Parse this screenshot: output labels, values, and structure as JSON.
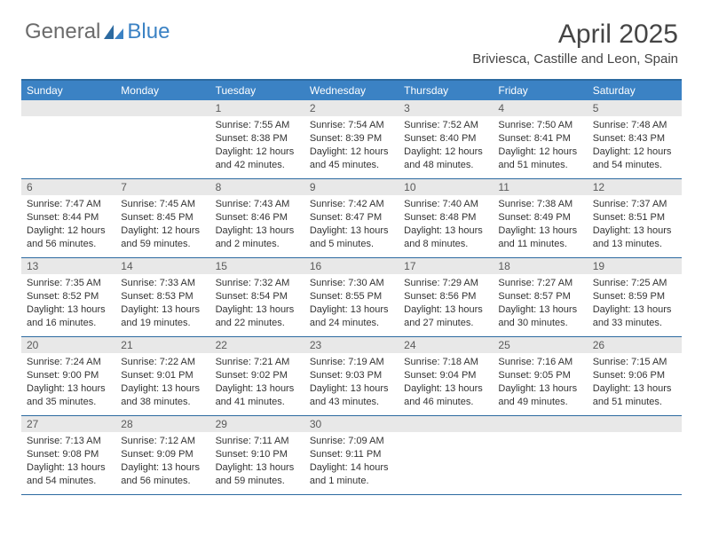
{
  "brand": {
    "general": "General",
    "blue": "Blue"
  },
  "title": "April 2025",
  "location": "Briviesca, Castille and Leon, Spain",
  "colors": {
    "header_bar": "#3b82c4",
    "rule": "#2c6aa0",
    "day_num_bg": "#e8e8e8",
    "text_dark": "#454545",
    "text_body": "#333333",
    "logo_gray": "#6b6b6b",
    "logo_blue": "#3b82c4",
    "background": "#ffffff"
  },
  "weekdays": [
    "Sunday",
    "Monday",
    "Tuesday",
    "Wednesday",
    "Thursday",
    "Friday",
    "Saturday"
  ],
  "weeks": [
    [
      {
        "n": "",
        "lines": []
      },
      {
        "n": "",
        "lines": []
      },
      {
        "n": "1",
        "lines": [
          "Sunrise: 7:55 AM",
          "Sunset: 8:38 PM",
          "Daylight: 12 hours",
          "and 42 minutes."
        ]
      },
      {
        "n": "2",
        "lines": [
          "Sunrise: 7:54 AM",
          "Sunset: 8:39 PM",
          "Daylight: 12 hours",
          "and 45 minutes."
        ]
      },
      {
        "n": "3",
        "lines": [
          "Sunrise: 7:52 AM",
          "Sunset: 8:40 PM",
          "Daylight: 12 hours",
          "and 48 minutes."
        ]
      },
      {
        "n": "4",
        "lines": [
          "Sunrise: 7:50 AM",
          "Sunset: 8:41 PM",
          "Daylight: 12 hours",
          "and 51 minutes."
        ]
      },
      {
        "n": "5",
        "lines": [
          "Sunrise: 7:48 AM",
          "Sunset: 8:43 PM",
          "Daylight: 12 hours",
          "and 54 minutes."
        ]
      }
    ],
    [
      {
        "n": "6",
        "lines": [
          "Sunrise: 7:47 AM",
          "Sunset: 8:44 PM",
          "Daylight: 12 hours",
          "and 56 minutes."
        ]
      },
      {
        "n": "7",
        "lines": [
          "Sunrise: 7:45 AM",
          "Sunset: 8:45 PM",
          "Daylight: 12 hours",
          "and 59 minutes."
        ]
      },
      {
        "n": "8",
        "lines": [
          "Sunrise: 7:43 AM",
          "Sunset: 8:46 PM",
          "Daylight: 13 hours",
          "and 2 minutes."
        ]
      },
      {
        "n": "9",
        "lines": [
          "Sunrise: 7:42 AM",
          "Sunset: 8:47 PM",
          "Daylight: 13 hours",
          "and 5 minutes."
        ]
      },
      {
        "n": "10",
        "lines": [
          "Sunrise: 7:40 AM",
          "Sunset: 8:48 PM",
          "Daylight: 13 hours",
          "and 8 minutes."
        ]
      },
      {
        "n": "11",
        "lines": [
          "Sunrise: 7:38 AM",
          "Sunset: 8:49 PM",
          "Daylight: 13 hours",
          "and 11 minutes."
        ]
      },
      {
        "n": "12",
        "lines": [
          "Sunrise: 7:37 AM",
          "Sunset: 8:51 PM",
          "Daylight: 13 hours",
          "and 13 minutes."
        ]
      }
    ],
    [
      {
        "n": "13",
        "lines": [
          "Sunrise: 7:35 AM",
          "Sunset: 8:52 PM",
          "Daylight: 13 hours",
          "and 16 minutes."
        ]
      },
      {
        "n": "14",
        "lines": [
          "Sunrise: 7:33 AM",
          "Sunset: 8:53 PM",
          "Daylight: 13 hours",
          "and 19 minutes."
        ]
      },
      {
        "n": "15",
        "lines": [
          "Sunrise: 7:32 AM",
          "Sunset: 8:54 PM",
          "Daylight: 13 hours",
          "and 22 minutes."
        ]
      },
      {
        "n": "16",
        "lines": [
          "Sunrise: 7:30 AM",
          "Sunset: 8:55 PM",
          "Daylight: 13 hours",
          "and 24 minutes."
        ]
      },
      {
        "n": "17",
        "lines": [
          "Sunrise: 7:29 AM",
          "Sunset: 8:56 PM",
          "Daylight: 13 hours",
          "and 27 minutes."
        ]
      },
      {
        "n": "18",
        "lines": [
          "Sunrise: 7:27 AM",
          "Sunset: 8:57 PM",
          "Daylight: 13 hours",
          "and 30 minutes."
        ]
      },
      {
        "n": "19",
        "lines": [
          "Sunrise: 7:25 AM",
          "Sunset: 8:59 PM",
          "Daylight: 13 hours",
          "and 33 minutes."
        ]
      }
    ],
    [
      {
        "n": "20",
        "lines": [
          "Sunrise: 7:24 AM",
          "Sunset: 9:00 PM",
          "Daylight: 13 hours",
          "and 35 minutes."
        ]
      },
      {
        "n": "21",
        "lines": [
          "Sunrise: 7:22 AM",
          "Sunset: 9:01 PM",
          "Daylight: 13 hours",
          "and 38 minutes."
        ]
      },
      {
        "n": "22",
        "lines": [
          "Sunrise: 7:21 AM",
          "Sunset: 9:02 PM",
          "Daylight: 13 hours",
          "and 41 minutes."
        ]
      },
      {
        "n": "23",
        "lines": [
          "Sunrise: 7:19 AM",
          "Sunset: 9:03 PM",
          "Daylight: 13 hours",
          "and 43 minutes."
        ]
      },
      {
        "n": "24",
        "lines": [
          "Sunrise: 7:18 AM",
          "Sunset: 9:04 PM",
          "Daylight: 13 hours",
          "and 46 minutes."
        ]
      },
      {
        "n": "25",
        "lines": [
          "Sunrise: 7:16 AM",
          "Sunset: 9:05 PM",
          "Daylight: 13 hours",
          "and 49 minutes."
        ]
      },
      {
        "n": "26",
        "lines": [
          "Sunrise: 7:15 AM",
          "Sunset: 9:06 PM",
          "Daylight: 13 hours",
          "and 51 minutes."
        ]
      }
    ],
    [
      {
        "n": "27",
        "lines": [
          "Sunrise: 7:13 AM",
          "Sunset: 9:08 PM",
          "Daylight: 13 hours",
          "and 54 minutes."
        ]
      },
      {
        "n": "28",
        "lines": [
          "Sunrise: 7:12 AM",
          "Sunset: 9:09 PM",
          "Daylight: 13 hours",
          "and 56 minutes."
        ]
      },
      {
        "n": "29",
        "lines": [
          "Sunrise: 7:11 AM",
          "Sunset: 9:10 PM",
          "Daylight: 13 hours",
          "and 59 minutes."
        ]
      },
      {
        "n": "30",
        "lines": [
          "Sunrise: 7:09 AM",
          "Sunset: 9:11 PM",
          "Daylight: 14 hours",
          "and 1 minute."
        ]
      },
      {
        "n": "",
        "lines": []
      },
      {
        "n": "",
        "lines": []
      },
      {
        "n": "",
        "lines": []
      }
    ]
  ]
}
